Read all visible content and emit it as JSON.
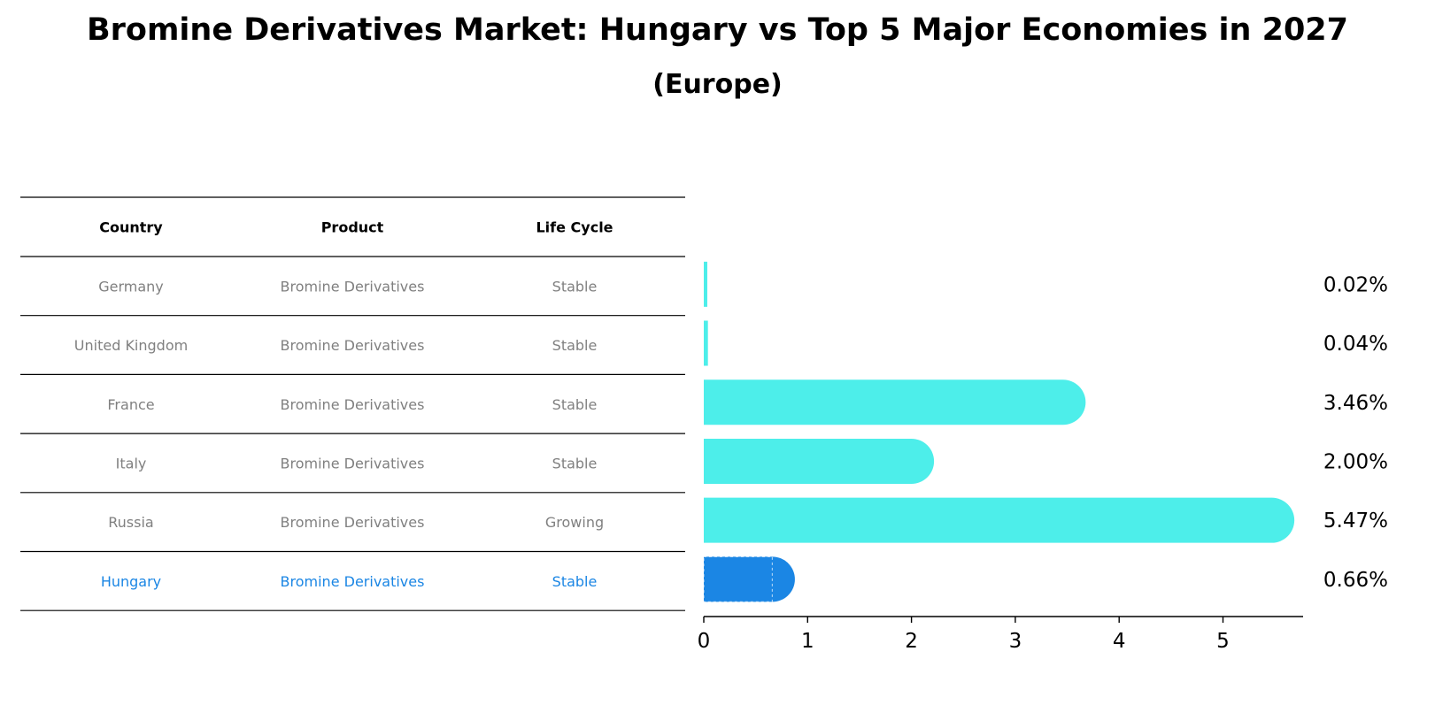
{
  "chart_data": {
    "type": "bar",
    "title": "Bromine Derivatives Market: Hungary vs Top 5 Major Economies in 2027",
    "subtitle": "(Europe)",
    "table": {
      "columns": [
        "Country",
        "Product",
        "Life Cycle"
      ],
      "rows": [
        {
          "country": "Germany",
          "product": "Bromine Derivatives",
          "life_cycle": "Stable"
        },
        {
          "country": "United Kingdom",
          "product": "Bromine Derivatives",
          "life_cycle": "Stable"
        },
        {
          "country": "France",
          "product": "Bromine Derivatives",
          "life_cycle": "Stable"
        },
        {
          "country": "Italy",
          "product": "Bromine Derivatives",
          "life_cycle": "Stable"
        },
        {
          "country": "Russia",
          "product": "Bromine Derivatives",
          "life_cycle": "Growing"
        },
        {
          "country": "Hungary",
          "product": "Bromine Derivatives",
          "life_cycle": "Stable"
        }
      ]
    },
    "categories": [
      "Germany",
      "United Kingdom",
      "France",
      "Italy",
      "Russia",
      "Hungary"
    ],
    "values": [
      0.02,
      0.04,
      3.46,
      2.0,
      5.47,
      0.66
    ],
    "value_labels": [
      "0.02%",
      "0.04%",
      "3.46%",
      "2.00%",
      "5.47%",
      "0.66%"
    ],
    "highlight": "Hungary",
    "xlim": [
      0,
      5.75
    ],
    "xticks": [
      0,
      1,
      2,
      3,
      4,
      5
    ],
    "colors": {
      "bar": "#4deeea",
      "highlight": "#1b86e4",
      "table_text": "#808080",
      "highlight_text": "#1b86e4"
    }
  }
}
